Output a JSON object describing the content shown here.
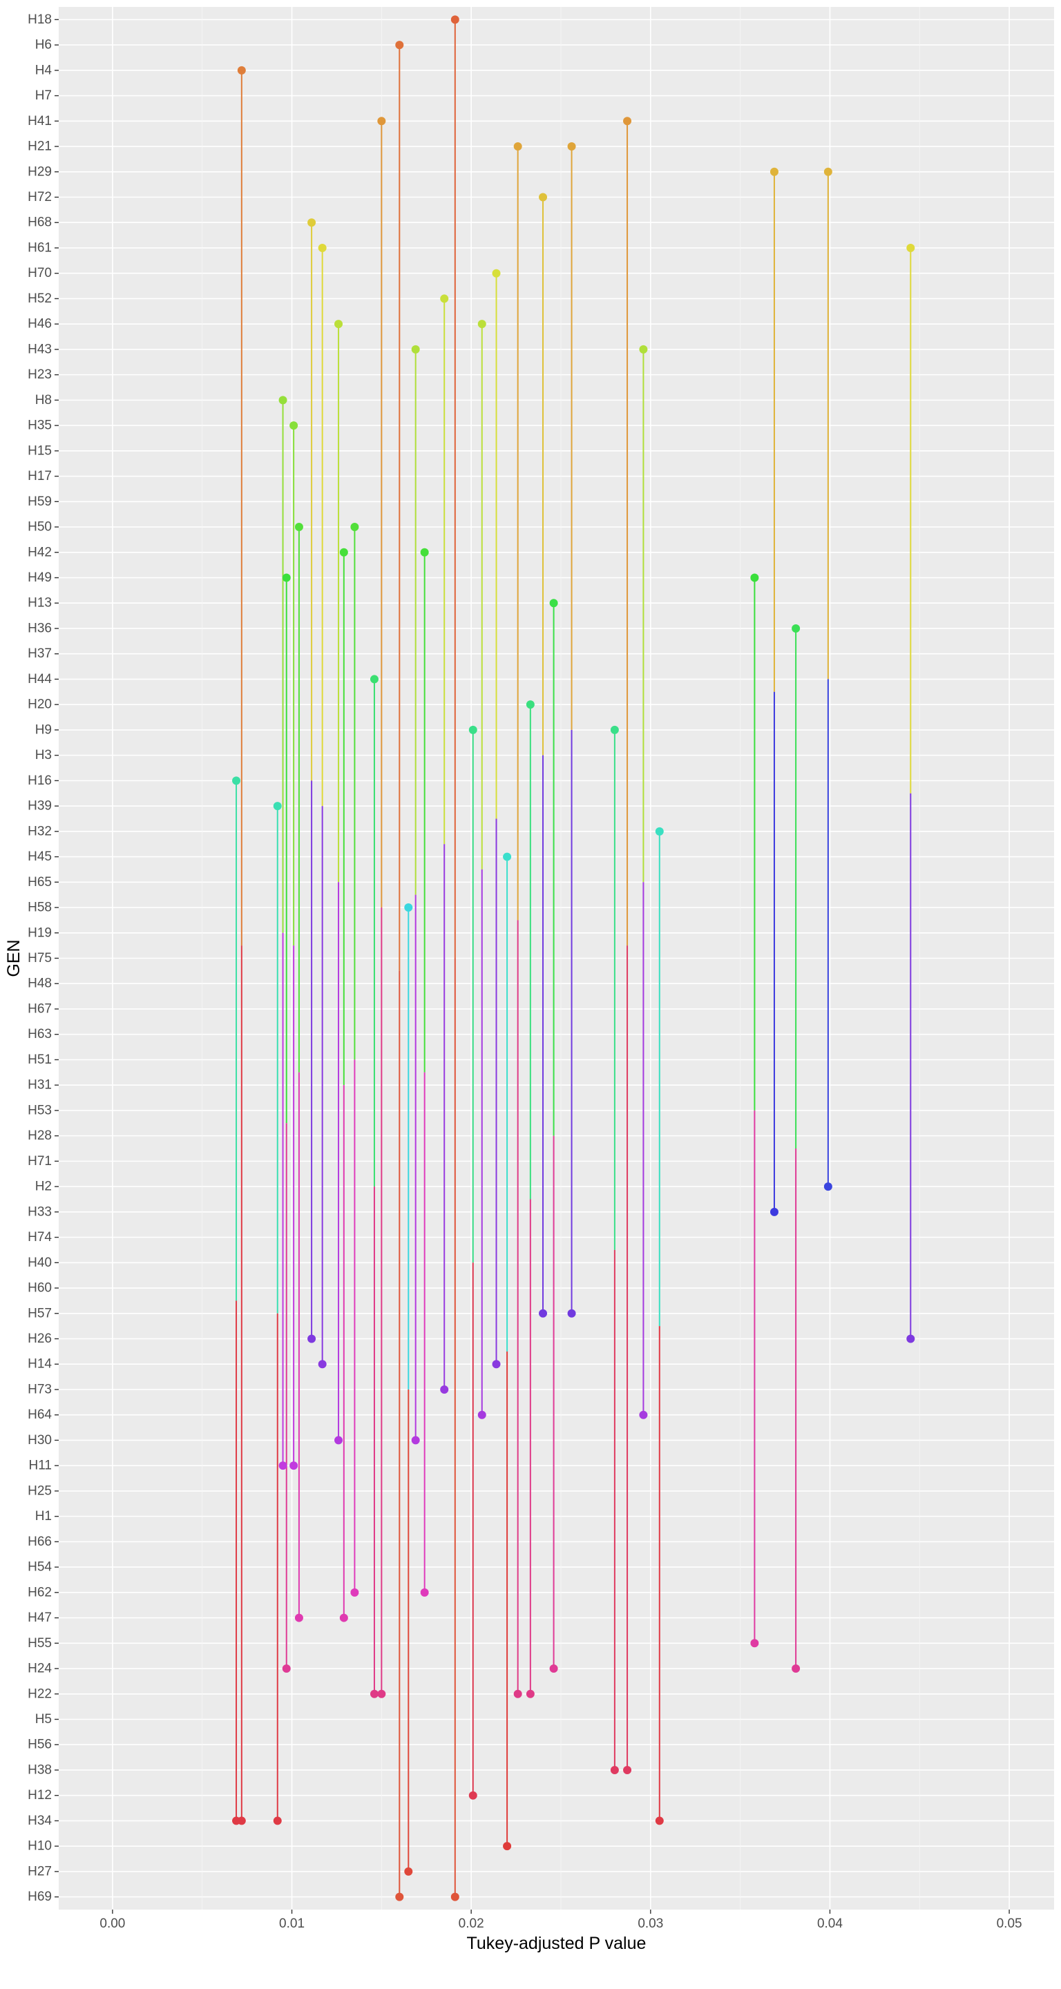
{
  "chart_data": {
    "type": "scatter",
    "title": "",
    "xlabel": "Tukey-adjusted P value",
    "ylabel": "GEN",
    "xlim": [
      -0.003,
      0.0525
    ],
    "x_ticks": [
      0.0,
      0.01,
      0.02,
      0.03,
      0.04,
      0.05
    ],
    "x_tick_labels": [
      "0.00",
      "0.01",
      "0.02",
      "0.03",
      "0.04",
      "0.05"
    ],
    "grid": true,
    "legend": "none",
    "categories": [
      "H18",
      "H6",
      "H4",
      "H7",
      "H41",
      "H21",
      "H29",
      "H72",
      "H68",
      "H61",
      "H70",
      "H52",
      "H46",
      "H43",
      "H23",
      "H8",
      "H35",
      "H15",
      "H17",
      "H59",
      "H50",
      "H42",
      "H49",
      "H13",
      "H36",
      "H37",
      "H44",
      "H20",
      "H9",
      "H3",
      "H16",
      "H39",
      "H32",
      "H45",
      "H65",
      "H58",
      "H19",
      "H75",
      "H48",
      "H67",
      "H63",
      "H51",
      "H31",
      "H53",
      "H28",
      "H71",
      "H2",
      "H33",
      "H74",
      "H40",
      "H60",
      "H57",
      "H26",
      "H14",
      "H73",
      "H64",
      "H30",
      "H11",
      "H25",
      "H1",
      "H66",
      "H54",
      "H62",
      "H47",
      "H55",
      "H24",
      "H22",
      "H5",
      "H56",
      "H38",
      "H12",
      "H34",
      "H10",
      "H27",
      "H69"
    ],
    "comparisons": [
      {
        "pair": [
          "H18",
          "H69"
        ],
        "p": 0.0191
      },
      {
        "pair": [
          "H6",
          "H69"
        ],
        "p": 0.016
      },
      {
        "pair": [
          "H4",
          "H34"
        ],
        "p": 0.0072
      },
      {
        "pair": [
          "H41",
          "H22"
        ],
        "p": 0.015
      },
      {
        "pair": [
          "H41",
          "H38"
        ],
        "p": 0.0287
      },
      {
        "pair": [
          "H21",
          "H22"
        ],
        "p": 0.0226
      },
      {
        "pair": [
          "H21",
          "H57"
        ],
        "p": 0.0256
      },
      {
        "pair": [
          "H29",
          "H33"
        ],
        "p": 0.0369
      },
      {
        "pair": [
          "H29",
          "H2"
        ],
        "p": 0.0399
      },
      {
        "pair": [
          "H72",
          "H57"
        ],
        "p": 0.024
      },
      {
        "pair": [
          "H68",
          "H26"
        ],
        "p": 0.0111
      },
      {
        "pair": [
          "H61",
          "H14"
        ],
        "p": 0.0117
      },
      {
        "pair": [
          "H61",
          "H26"
        ],
        "p": 0.0445
      },
      {
        "pair": [
          "H70",
          "H14"
        ],
        "p": 0.0214
      },
      {
        "pair": [
          "H52",
          "H73"
        ],
        "p": 0.0185
      },
      {
        "pair": [
          "H46",
          "H30"
        ],
        "p": 0.0126
      },
      {
        "pair": [
          "H46",
          "H64"
        ],
        "p": 0.0206
      },
      {
        "pair": [
          "H43",
          "H30"
        ],
        "p": 0.0169
      },
      {
        "pair": [
          "H43",
          "H64"
        ],
        "p": 0.0296
      },
      {
        "pair": [
          "H8",
          "H11"
        ],
        "p": 0.0095
      },
      {
        "pair": [
          "H35",
          "H11"
        ],
        "p": 0.0101
      },
      {
        "pair": [
          "H50",
          "H47"
        ],
        "p": 0.0104
      },
      {
        "pair": [
          "H50",
          "H62"
        ],
        "p": 0.0135
      },
      {
        "pair": [
          "H42",
          "H47"
        ],
        "p": 0.0129
      },
      {
        "pair": [
          "H42",
          "H62"
        ],
        "p": 0.0174
      },
      {
        "pair": [
          "H49",
          "H55"
        ],
        "p": 0.0358
      },
      {
        "pair": [
          "H49",
          "H24"
        ],
        "p": 0.0097
      },
      {
        "pair": [
          "H13",
          "H24"
        ],
        "p": 0.0246
      },
      {
        "pair": [
          "H36",
          "H24"
        ],
        "p": 0.0381
      },
      {
        "pair": [
          "H44",
          "H22"
        ],
        "p": 0.0146
      },
      {
        "pair": [
          "H20",
          "H22"
        ],
        "p": 0.0233
      },
      {
        "pair": [
          "H9",
          "H12"
        ],
        "p": 0.0201
      },
      {
        "pair": [
          "H9",
          "H38"
        ],
        "p": 0.028
      },
      {
        "pair": [
          "H16",
          "H34"
        ],
        "p": 0.0069
      },
      {
        "pair": [
          "H39",
          "H34"
        ],
        "p": 0.0092
      },
      {
        "pair": [
          "H32",
          "H34"
        ],
        "p": 0.0305
      },
      {
        "pair": [
          "H45",
          "H10"
        ],
        "p": 0.022
      },
      {
        "pair": [
          "H58",
          "H27"
        ],
        "p": 0.0165
      }
    ]
  }
}
